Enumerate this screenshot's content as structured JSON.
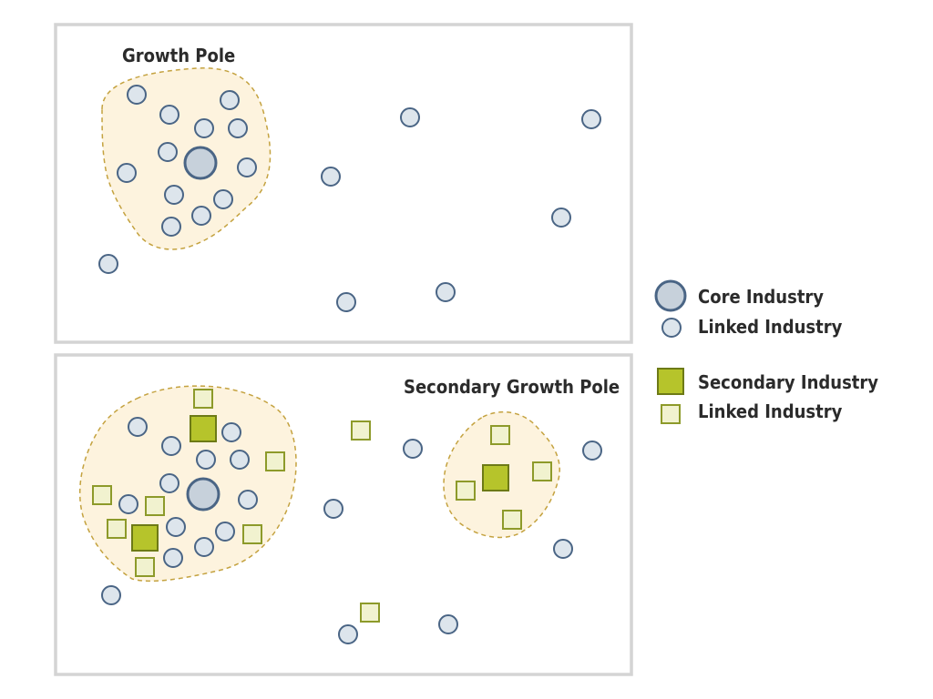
{
  "diagram": {
    "top_panel": {
      "title": "Growth Pole"
    },
    "bottom_panel": {
      "title": "Secondary Growth Pole"
    }
  },
  "legend": {
    "core": "Core Industry",
    "linked_circle": "Linked Industry",
    "secondary": "Secondary Industry",
    "linked_square": "Linked Industry"
  },
  "colors": {
    "circle_fill": "#dde5ec",
    "circle_stroke": "#4a6585",
    "core_fill": "#c7d1db",
    "core_stroke": "#4a6585",
    "secondary_fill": "#b6c42b",
    "secondary_stroke": "#6d7a16",
    "linked_square_fill": "#f1f2cf",
    "linked_square_stroke": "#8d9a2a",
    "pole_fill": "#fdf3de",
    "pole_stroke": "#c4a23f"
  }
}
